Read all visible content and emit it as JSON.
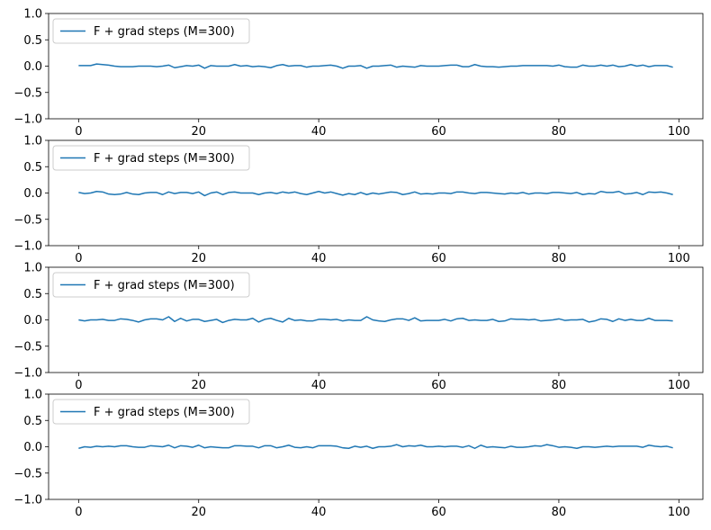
{
  "chart_data": [
    {
      "type": "line",
      "xlim": [
        -5,
        104
      ],
      "ylim": [
        -1.0,
        1.0
      ],
      "xticks": [
        "0",
        "20",
        "40",
        "60",
        "80",
        "100"
      ],
      "yticks": [
        "1.0",
        "0.5",
        "0.0",
        "−0.5",
        "−1.0"
      ],
      "legend": {
        "placement": "upper-left"
      },
      "series": [
        {
          "name": "F + grad steps (M=300)",
          "color": "#1f77b4",
          "x": [
            0,
            1,
            2,
            3,
            4,
            5,
            6,
            7,
            8,
            9,
            10,
            11,
            12,
            13,
            14,
            15,
            16,
            17,
            18,
            19,
            20,
            21,
            22,
            23,
            24,
            25,
            26,
            27,
            28,
            29,
            30,
            31,
            32,
            33,
            34,
            35,
            36,
            37,
            38,
            39,
            40,
            41,
            42,
            43,
            44,
            45,
            46,
            47,
            48,
            49,
            50,
            51,
            52,
            53,
            54,
            55,
            56,
            57,
            58,
            59,
            60,
            61,
            62,
            63,
            64,
            65,
            66,
            67,
            68,
            69,
            70,
            71,
            72,
            73,
            74,
            75,
            76,
            77,
            78,
            79,
            80,
            81,
            82,
            83,
            84,
            85,
            86,
            87,
            88,
            89,
            90,
            91,
            92,
            93,
            94,
            95,
            96,
            97,
            98,
            99
          ],
          "y": [
            0.01,
            0.01,
            0.01,
            0.04,
            0.03,
            0.02,
            0.0,
            -0.01,
            -0.01,
            -0.01,
            0.0,
            0.0,
            0.0,
            -0.01,
            0.0,
            0.02,
            -0.03,
            -0.01,
            0.01,
            0.0,
            0.02,
            -0.04,
            0.01,
            0.0,
            0.0,
            0.0,
            0.03,
            0.0,
            0.01,
            -0.01,
            0.0,
            -0.01,
            -0.03,
            0.01,
            0.03,
            0.0,
            0.01,
            0.01,
            -0.02,
            0.0,
            0.0,
            0.01,
            0.02,
            0.0,
            -0.04,
            0.0,
            0.0,
            0.01,
            -0.04,
            0.0,
            0.0,
            0.01,
            0.02,
            -0.02,
            0.0,
            -0.01,
            -0.02,
            0.01,
            0.0,
            0.0,
            0.0,
            0.01,
            0.02,
            0.02,
            -0.01,
            -0.01,
            0.03,
            0.0,
            -0.01,
            -0.01,
            -0.02,
            -0.01,
            0.0,
            0.0,
            0.01,
            0.01,
            0.01,
            0.01,
            0.01,
            0.0,
            0.02,
            -0.01,
            -0.02,
            -0.02,
            0.02,
            0.0,
            0.0,
            0.02,
            0.0,
            0.02,
            -0.01,
            0.0,
            0.03,
            0.0,
            0.02,
            -0.01,
            0.01,
            0.01,
            0.01,
            -0.02
          ]
        }
      ]
    },
    {
      "type": "line",
      "xlim": [
        -5,
        104
      ],
      "ylim": [
        -1.0,
        1.0
      ],
      "xticks": [
        "0",
        "20",
        "40",
        "60",
        "80",
        "100"
      ],
      "yticks": [
        "1.0",
        "0.5",
        "0.0",
        "−0.5",
        "−1.0"
      ],
      "legend": {
        "placement": "upper-left"
      },
      "series": [
        {
          "name": "F + grad steps (M=300)",
          "color": "#1f77b4",
          "x": [
            0,
            1,
            2,
            3,
            4,
            5,
            6,
            7,
            8,
            9,
            10,
            11,
            12,
            13,
            14,
            15,
            16,
            17,
            18,
            19,
            20,
            21,
            22,
            23,
            24,
            25,
            26,
            27,
            28,
            29,
            30,
            31,
            32,
            33,
            34,
            35,
            36,
            37,
            38,
            39,
            40,
            41,
            42,
            43,
            44,
            45,
            46,
            47,
            48,
            49,
            50,
            51,
            52,
            53,
            54,
            55,
            56,
            57,
            58,
            59,
            60,
            61,
            62,
            63,
            64,
            65,
            66,
            67,
            68,
            69,
            70,
            71,
            72,
            73,
            74,
            75,
            76,
            77,
            78,
            79,
            80,
            81,
            82,
            83,
            84,
            85,
            86,
            87,
            88,
            89,
            90,
            91,
            92,
            93,
            94,
            95,
            96,
            97,
            98,
            99
          ],
          "y": [
            0.01,
            -0.01,
            0.0,
            0.03,
            0.02,
            -0.02,
            -0.03,
            -0.02,
            0.01,
            -0.02,
            -0.03,
            0.0,
            0.01,
            0.01,
            -0.03,
            0.02,
            -0.01,
            0.01,
            0.01,
            -0.01,
            0.02,
            -0.05,
            0.0,
            0.02,
            -0.03,
            0.01,
            0.02,
            0.0,
            0.0,
            0.0,
            -0.03,
            0.0,
            0.01,
            -0.01,
            0.02,
            0.0,
            0.02,
            -0.01,
            -0.03,
            0.0,
            0.03,
            0.0,
            0.02,
            -0.01,
            -0.04,
            -0.01,
            -0.03,
            0.01,
            -0.03,
            0.0,
            -0.02,
            0.0,
            0.02,
            0.01,
            -0.03,
            -0.01,
            0.02,
            -0.02,
            -0.01,
            -0.02,
            0.0,
            0.0,
            -0.01,
            0.02,
            0.02,
            0.0,
            -0.01,
            0.01,
            0.01,
            0.0,
            -0.01,
            -0.02,
            0.0,
            -0.01,
            0.01,
            -0.02,
            0.0,
            0.0,
            -0.01,
            0.01,
            0.01,
            0.0,
            -0.01,
            0.01,
            -0.03,
            -0.01,
            -0.02,
            0.03,
            0.01,
            0.01,
            0.03,
            -0.02,
            -0.01,
            0.01,
            -0.03,
            0.02,
            0.01,
            0.02,
            0.0,
            -0.03
          ]
        }
      ]
    },
    {
      "type": "line",
      "xlim": [
        -5,
        104
      ],
      "ylim": [
        -1.0,
        1.0
      ],
      "xticks": [
        "0",
        "20",
        "40",
        "60",
        "80",
        "100"
      ],
      "yticks": [
        "1.0",
        "0.5",
        "0.0",
        "−0.5",
        "−1.0"
      ],
      "legend": {
        "placement": "upper-left"
      },
      "series": [
        {
          "name": "F + grad steps (M=300)",
          "color": "#1f77b4",
          "x": [
            0,
            1,
            2,
            3,
            4,
            5,
            6,
            7,
            8,
            9,
            10,
            11,
            12,
            13,
            14,
            15,
            16,
            17,
            18,
            19,
            20,
            21,
            22,
            23,
            24,
            25,
            26,
            27,
            28,
            29,
            30,
            31,
            32,
            33,
            34,
            35,
            36,
            37,
            38,
            39,
            40,
            41,
            42,
            43,
            44,
            45,
            46,
            47,
            48,
            49,
            50,
            51,
            52,
            53,
            54,
            55,
            56,
            57,
            58,
            59,
            60,
            61,
            62,
            63,
            64,
            65,
            66,
            67,
            68,
            69,
            70,
            71,
            72,
            73,
            74,
            75,
            76,
            77,
            78,
            79,
            80,
            81,
            82,
            83,
            84,
            85,
            86,
            87,
            88,
            89,
            90,
            91,
            92,
            93,
            94,
            95,
            96,
            97,
            98,
            99
          ],
          "y": [
            0.0,
            -0.02,
            0.0,
            0.0,
            0.01,
            -0.01,
            -0.01,
            0.02,
            0.01,
            -0.01,
            -0.04,
            0.0,
            0.02,
            0.02,
            0.0,
            0.06,
            -0.03,
            0.03,
            -0.02,
            0.01,
            0.01,
            -0.03,
            -0.01,
            0.01,
            -0.05,
            -0.01,
            0.01,
            0.0,
            0.0,
            0.03,
            -0.04,
            0.01,
            0.03,
            -0.01,
            -0.04,
            0.03,
            -0.01,
            0.0,
            -0.02,
            -0.02,
            0.01,
            0.01,
            0.0,
            0.01,
            -0.02,
            0.0,
            -0.01,
            -0.01,
            0.06,
            0.0,
            -0.02,
            -0.03,
            0.0,
            0.02,
            0.02,
            -0.01,
            0.04,
            -0.02,
            -0.01,
            -0.01,
            -0.01,
            0.01,
            -0.02,
            0.02,
            0.03,
            -0.01,
            0.0,
            -0.01,
            -0.01,
            0.01,
            -0.03,
            -0.02,
            0.02,
            0.01,
            0.01,
            0.0,
            0.01,
            -0.02,
            -0.01,
            0.0,
            0.02,
            -0.01,
            0.0,
            0.0,
            0.01,
            -0.04,
            -0.02,
            0.02,
            0.01,
            -0.03,
            0.02,
            -0.01,
            0.01,
            -0.01,
            -0.01,
            0.03,
            -0.01,
            -0.01,
            -0.01,
            -0.02
          ]
        }
      ]
    },
    {
      "type": "line",
      "xlim": [
        -5,
        104
      ],
      "ylim": [
        -1.0,
        1.0
      ],
      "xticks": [
        "0",
        "20",
        "40",
        "60",
        "80",
        "100"
      ],
      "yticks": [
        "1.0",
        "0.5",
        "0.0",
        "−0.5",
        "−1.0"
      ],
      "legend": {
        "placement": "upper-left"
      },
      "series": [
        {
          "name": "F + grad steps (M=300)",
          "color": "#1f77b4",
          "x": [
            0,
            1,
            2,
            3,
            4,
            5,
            6,
            7,
            8,
            9,
            10,
            11,
            12,
            13,
            14,
            15,
            16,
            17,
            18,
            19,
            20,
            21,
            22,
            23,
            24,
            25,
            26,
            27,
            28,
            29,
            30,
            31,
            32,
            33,
            34,
            35,
            36,
            37,
            38,
            39,
            40,
            41,
            42,
            43,
            44,
            45,
            46,
            47,
            48,
            49,
            50,
            51,
            52,
            53,
            54,
            55,
            56,
            57,
            58,
            59,
            60,
            61,
            62,
            63,
            64,
            65,
            66,
            67,
            68,
            69,
            70,
            71,
            72,
            73,
            74,
            75,
            76,
            77,
            78,
            79,
            80,
            81,
            82,
            83,
            84,
            85,
            86,
            87,
            88,
            89,
            90,
            91,
            92,
            93,
            94,
            95,
            96,
            97,
            98,
            99
          ],
          "y": [
            -0.03,
            0.0,
            -0.01,
            0.01,
            0.0,
            0.01,
            0.0,
            0.02,
            0.02,
            0.0,
            -0.01,
            -0.01,
            0.02,
            0.01,
            0.0,
            0.03,
            -0.02,
            0.02,
            0.01,
            -0.01,
            0.03,
            -0.02,
            0.0,
            -0.01,
            -0.02,
            -0.02,
            0.02,
            0.02,
            0.01,
            0.01,
            -0.02,
            0.02,
            0.02,
            -0.02,
            0.0,
            0.03,
            -0.01,
            -0.02,
            0.0,
            -0.02,
            0.02,
            0.02,
            0.02,
            0.01,
            -0.02,
            -0.03,
            0.01,
            -0.01,
            0.01,
            -0.03,
            0.0,
            0.0,
            0.01,
            0.04,
            0.0,
            0.02,
            0.01,
            0.03,
            0.0,
            0.0,
            0.01,
            0.0,
            0.01,
            0.01,
            -0.01,
            0.02,
            -0.03,
            0.03,
            -0.01,
            0.0,
            -0.01,
            -0.02,
            0.01,
            -0.01,
            -0.01,
            0.0,
            0.02,
            0.01,
            0.04,
            0.02,
            -0.01,
            0.0,
            -0.01,
            -0.03,
            0.0,
            0.0,
            -0.01,
            0.0,
            0.01,
            0.0,
            0.01,
            0.01,
            0.01,
            0.01,
            -0.01,
            0.03,
            0.01,
            0.0,
            0.01,
            -0.02
          ]
        }
      ]
    }
  ]
}
